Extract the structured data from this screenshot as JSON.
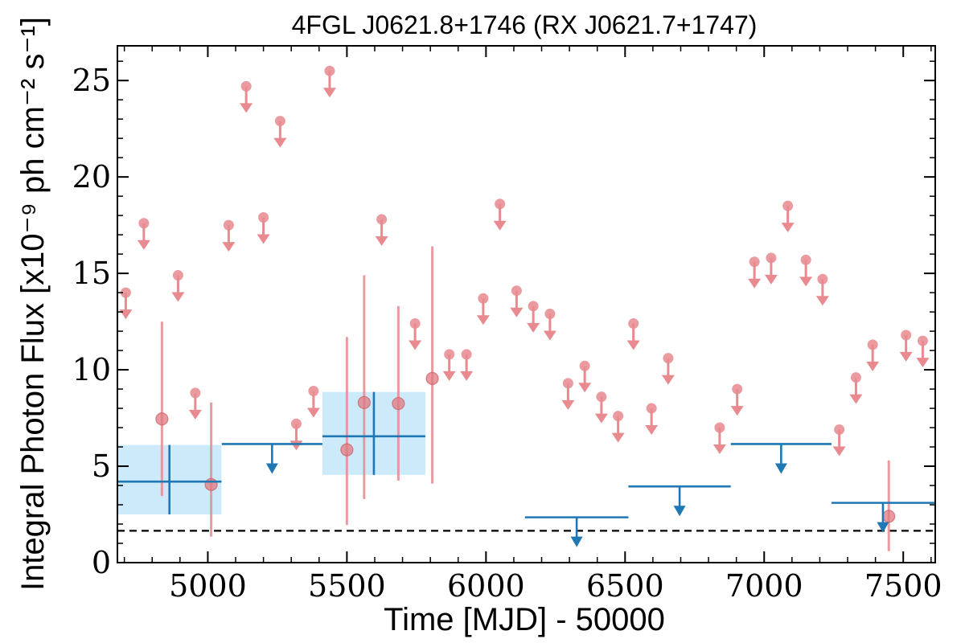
{
  "chart_data": {
    "type": "scatter",
    "title": "4FGL J0621.8+1746 (RX J0621.7+1747)",
    "xlabel": "Time [MJD] - 50000",
    "ylabel": "Integral Photon Flux [x10⁻⁹ ph cm⁻² s⁻¹]",
    "xlim": [
      4675,
      7615
    ],
    "ylim": [
      0,
      26.8
    ],
    "xticks": [
      5000,
      5500,
      6000,
      6500,
      7000,
      7500
    ],
    "xtick_labels": [
      "5000",
      "5500",
      "6000",
      "6500",
      "7000",
      "7500"
    ],
    "yticks": [
      0,
      5,
      10,
      15,
      20,
      25
    ],
    "ytick_labels": [
      "0",
      "5",
      "10",
      "15",
      "20",
      "25"
    ],
    "grid": false,
    "colors": {
      "short_bins": "#e88a8f",
      "long_bins": "#1f77b4",
      "long_bins_band": "#cdeafb",
      "reference_line": "#000000"
    },
    "reference_line": {
      "y": 1.65,
      "style": "dashed"
    },
    "series": [
      {
        "name": "",
        "kind": "upper_limits",
        "x": [
          4705,
          4770,
          4893,
          4955,
          5075,
          5200,
          5260,
          5138,
          5318,
          5380,
          5438,
          5625,
          5745,
          5868,
          5930,
          5990,
          6050,
          6110,
          6170,
          6230,
          6295,
          6355,
          6415,
          6475,
          6530,
          6595,
          6655,
          6840,
          6903,
          6965,
          7025,
          7085,
          7150,
          7210,
          7270,
          7330,
          7390,
          7510,
          7570
        ],
        "y": [
          14.0,
          17.6,
          14.9,
          8.8,
          17.5,
          17.9,
          22.9,
          24.7,
          7.2,
          8.9,
          25.5,
          17.8,
          12.4,
          10.8,
          10.8,
          13.7,
          18.6,
          14.1,
          13.3,
          12.9,
          9.3,
          10.2,
          8.6,
          7.6,
          12.4,
          8.0,
          10.6,
          7.0,
          9.0,
          15.6,
          15.8,
          18.5,
          15.7,
          14.7,
          6.9,
          9.6,
          11.3,
          11.8,
          11.5
        ]
      },
      {
        "name": "",
        "kind": "detections",
        "x": [
          4835,
          5012,
          5500,
          5562,
          5685,
          5807,
          7448
        ],
        "y": [
          7.45,
          4.05,
          5.85,
          8.3,
          8.25,
          9.55,
          2.4
        ],
        "yerr_low": [
          4.0,
          2.7,
          3.9,
          5.0,
          4.0,
          5.45,
          1.8
        ],
        "yerr_high": [
          5.05,
          4.25,
          5.85,
          6.6,
          5.05,
          6.85,
          2.9
        ]
      },
      {
        "name": "",
        "kind": "long_bin_detections",
        "x": [
          4862,
          5597
        ],
        "xerr": [
          187,
          185
        ],
        "y": [
          4.2,
          6.55
        ],
        "yerr_low": [
          1.7,
          2.0
        ],
        "yerr_high": [
          1.9,
          2.3
        ]
      },
      {
        "name": "",
        "kind": "long_bin_upper_limits",
        "x_start": [
          5050,
          6140,
          6512,
          6880,
          7242
        ],
        "x_end": [
          5412,
          6512,
          6880,
          7242,
          7612
        ],
        "y": [
          6.15,
          2.35,
          3.95,
          6.15,
          3.1
        ]
      }
    ]
  }
}
